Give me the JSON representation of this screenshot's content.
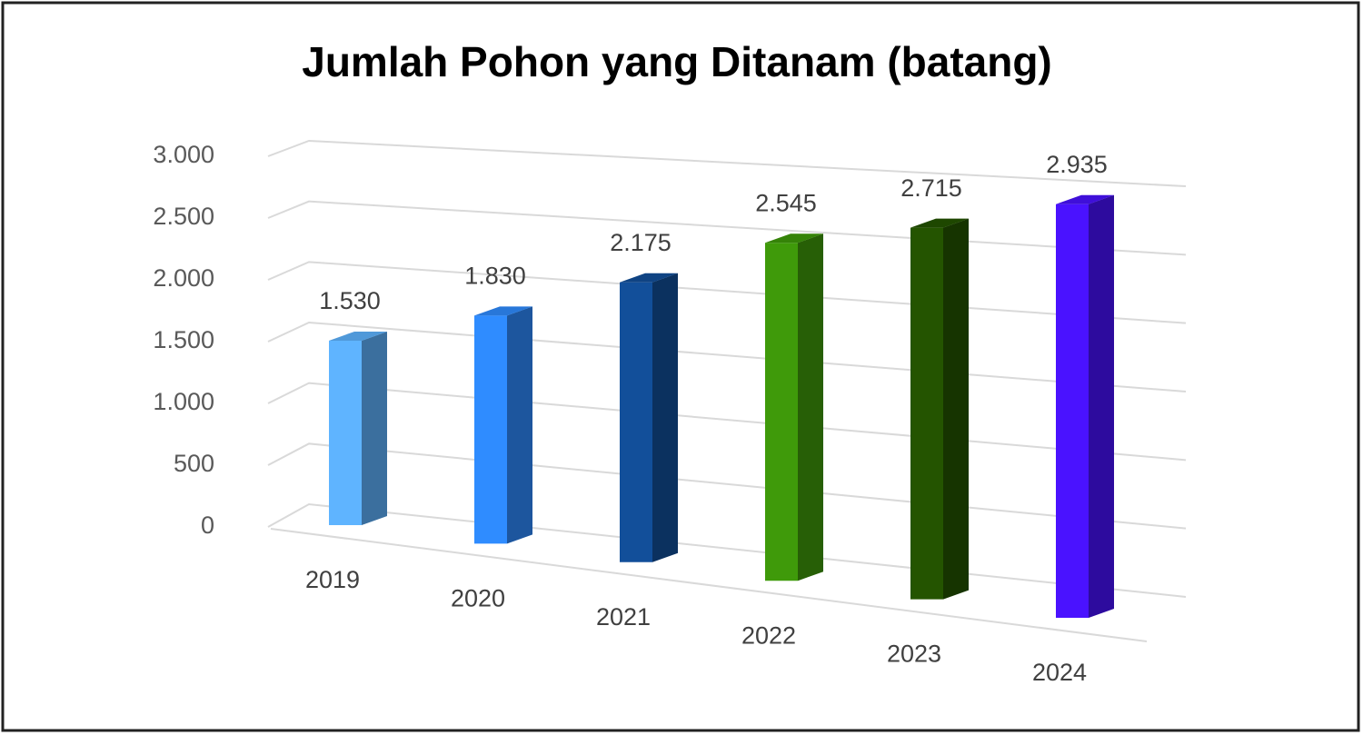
{
  "chart_data": {
    "type": "bar3d",
    "title": "Jumlah Pohon yang Ditanam (batang)",
    "categories": [
      "2019",
      "2020",
      "2021",
      "2022",
      "2023",
      "2024"
    ],
    "values": [
      1530,
      1830,
      2175,
      2545,
      2715,
      2935
    ],
    "value_labels": [
      "1.530",
      "1.830",
      "2.175",
      "2.545",
      "2.715",
      "2.935"
    ],
    "colors": [
      "#5fb4ff",
      "#2f8cff",
      "#124f9a",
      "#3f9a0a",
      "#245400",
      "#4a12ff"
    ],
    "ylim": [
      0,
      3000
    ],
    "yticks": [
      {
        "value": 0,
        "label": "0"
      },
      {
        "value": 500,
        "label": "500"
      },
      {
        "value": 1000,
        "label": "1.000"
      },
      {
        "value": 1500,
        "label": "1.500"
      },
      {
        "value": 2000,
        "label": "2.000"
      },
      {
        "value": 2500,
        "label": "2.500"
      },
      {
        "value": 3000,
        "label": "3.000"
      }
    ],
    "grid": true
  }
}
